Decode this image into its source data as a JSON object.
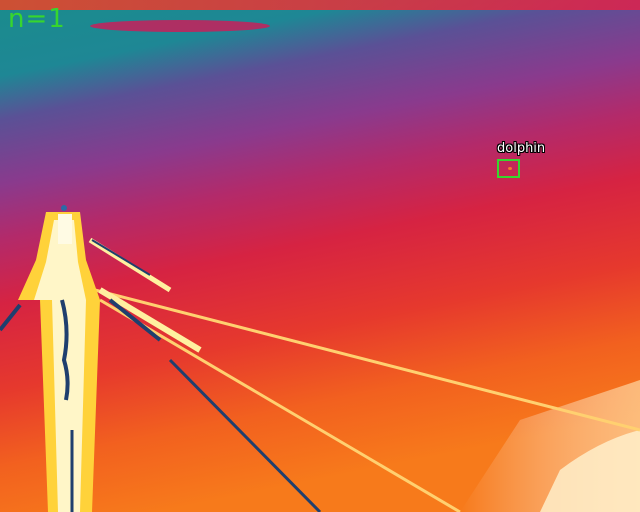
{
  "overlay": {
    "count_text": "n=1",
    "accent_color": "#37d62e"
  },
  "detections": [
    {
      "label": "dolphin"
    }
  ],
  "palette": {
    "cool": "#1a8a8f",
    "mid": "#7a3a8f",
    "warm": "#d8223f",
    "hot": "#f36a1e",
    "hottest": "#fff6c8",
    "cable": "#1f3f6e"
  }
}
